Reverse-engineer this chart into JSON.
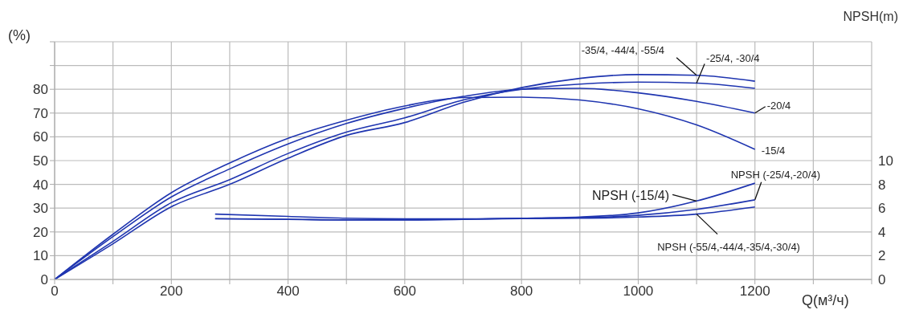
{
  "chart_data": {
    "type": "line",
    "xlabel": "Q(м³/ч)",
    "ylabel": "(%)",
    "y2label": "NPSH(m)",
    "xlim": [
      0,
      1400
    ],
    "xticks": [
      0,
      {
        "value": 100,
        "label": null
      },
      200,
      {
        "value": 300,
        "label": null
      },
      400,
      {
        "value": 500,
        "label": null
      },
      600,
      {
        "value": 700,
        "label": null
      },
      800,
      {
        "value": 900,
        "label": null
      },
      1000,
      {
        "value": 1100,
        "label": null
      },
      1200,
      {
        "value": 1300,
        "label": null
      },
      {
        "value": 1400,
        "label": null
      }
    ],
    "ylim": [
      0,
      100
    ],
    "yticks": [
      0,
      10,
      20,
      30,
      40,
      50,
      60,
      70,
      80,
      {
        "value": 90,
        "label": null
      },
      {
        "value": 100,
        "label": null
      }
    ],
    "y2lim": [
      0,
      20
    ],
    "y2ticks": [
      0,
      2,
      4,
      6,
      8,
      10
    ],
    "grid": true,
    "series": [
      {
        "name": "-35/4, -44/4, -55/4",
        "color": "#1f35b0",
        "x": [
          0,
          100,
          200,
          300,
          400,
          500,
          600,
          700,
          800,
          900,
          1000,
          1100,
          1200
        ],
        "values": [
          0,
          15,
          30.6,
          40,
          51,
          60.6,
          66,
          74.5,
          80.7,
          84.6,
          86.2,
          85.9,
          83.4
        ]
      },
      {
        "name": "-25/4, -30/4",
        "color": "#1f35b0",
        "x": [
          0,
          100,
          200,
          300,
          400,
          500,
          600,
          700,
          800,
          900,
          1000,
          1100,
          1200
        ],
        "values": [
          0,
          16,
          32.3,
          42,
          53,
          62,
          68,
          75.5,
          80,
          82.2,
          83,
          82.6,
          80.4
        ]
      },
      {
        "name": "-20/4",
        "color": "#1f35b0",
        "x": [
          0,
          100,
          200,
          300,
          400,
          500,
          600,
          700,
          800,
          900,
          1000,
          1100,
          1200
        ],
        "values": [
          0,
          18,
          34.7,
          46.5,
          57,
          65.6,
          72,
          77,
          80,
          80.4,
          78.5,
          74.9,
          70
        ]
      },
      {
        "name": "-15/4",
        "color": "#1f35b0",
        "x": [
          0,
          100,
          200,
          300,
          400,
          500,
          600,
          700,
          800,
          900,
          1000,
          1100,
          1200
        ],
        "values": [
          0,
          19,
          36.5,
          49,
          59.4,
          67,
          73,
          76.5,
          76.7,
          75.5,
          71.8,
          65,
          54.7
        ]
      },
      {
        "name": "NPSH (-15/4)",
        "color": "#1f35b0",
        "axis": "y2",
        "x": [
          275,
          400,
          500,
          600,
          700,
          800,
          900,
          1000,
          1100,
          1200
        ],
        "values": [
          5.5,
          5.3,
          5.15,
          5.1,
          5.1,
          5.15,
          5.25,
          5.6,
          6.6,
          8.1
        ]
      },
      {
        "name": "NPSH (-25/4,-20/4)",
        "color": "#1f35b0",
        "axis": "y2",
        "x": [
          275,
          400,
          500,
          600,
          700,
          800,
          900,
          1000,
          1100,
          1200
        ],
        "values": [
          5.1,
          5.05,
          5.0,
          5.0,
          5.05,
          5.15,
          5.2,
          5.4,
          5.9,
          6.7
        ]
      },
      {
        "name": "NPSH (-55/4,-44/4,-35/4,-30/4)",
        "color": "#1f35b0",
        "axis": "y2",
        "x": [
          275,
          400,
          500,
          600,
          700,
          800,
          900,
          1000,
          1100,
          1200
        ],
        "values": [
          5.12,
          5.07,
          5.02,
          5.02,
          5.07,
          5.12,
          5.15,
          5.25,
          5.5,
          6.1
        ]
      }
    ]
  }
}
